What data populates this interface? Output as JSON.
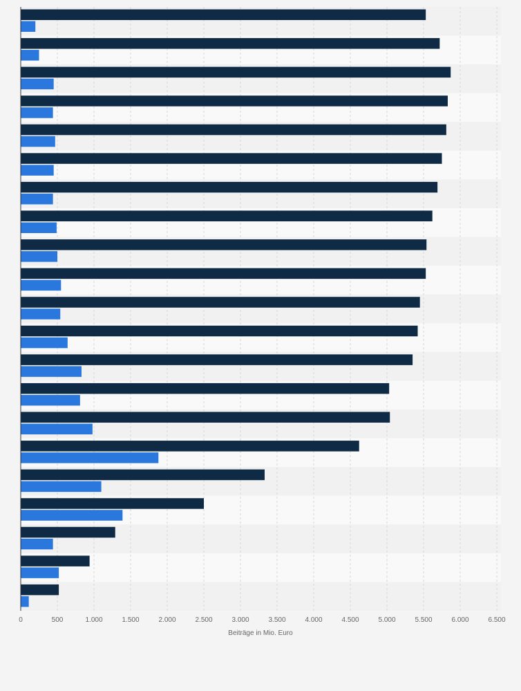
{
  "chart_data": {
    "type": "bar",
    "orientation": "horizontal",
    "categories": [
      "",
      "",
      "",
      "",
      "",
      "",
      "",
      "",
      "",
      "",
      "",
      "",
      "",
      "",
      "",
      "",
      "",
      "",
      "",
      "",
      ""
    ],
    "series": [
      {
        "color": "#0f2a44",
        "values": [
          5530,
          5720,
          5870,
          5830,
          5810,
          5750,
          5690,
          5620,
          5540,
          5530,
          5450,
          5420,
          5350,
          5030,
          5040,
          4620,
          3330,
          2500,
          1290,
          940,
          520
        ]
      },
      {
        "color": "#2a78de",
        "values": [
          200,
          250,
          450,
          440,
          470,
          450,
          440,
          490,
          500,
          550,
          540,
          640,
          830,
          810,
          980,
          1880,
          1100,
          1390,
          440,
          520,
          110
        ]
      }
    ],
    "xlabel": "Beiträge in Mio. Euro",
    "ylabel": "",
    "xlim": [
      0,
      6500
    ],
    "ticks": [
      0,
      500,
      1000,
      1500,
      2000,
      2500,
      3000,
      3500,
      4000,
      4500,
      5000,
      5500,
      6000,
      6500
    ],
    "tick_labels": [
      "0",
      "500",
      "1.000",
      "1.500",
      "2.000",
      "2.500",
      "3.000",
      "3.500",
      "4.000",
      "4.500",
      "5.000",
      "5.500",
      "6.000",
      "6.500"
    ],
    "grid": true,
    "legend": "none"
  },
  "colors": {
    "background": "#f4f4f4",
    "band_light": "#f9f9f9",
    "band_dark": "#f1f1f1",
    "gridline": "#d7d7d7",
    "axis": "#333333",
    "text": "#666666"
  }
}
